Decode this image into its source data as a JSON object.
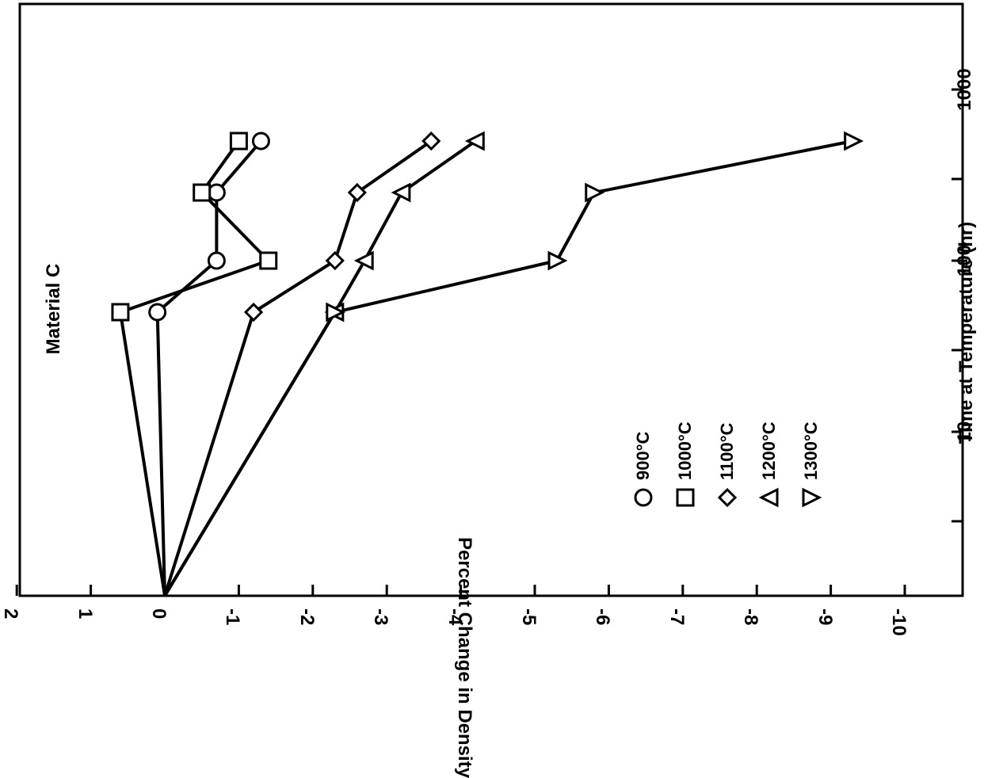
{
  "chart_data": {
    "type": "line",
    "orientation": "rotated-90",
    "x_scale": "log",
    "xlabel": "Time at Temperature (hr)",
    "ylabel": "Percent Change in Density",
    "annotation": "Material C",
    "xlim": [
      1,
      3000
    ],
    "ylim": [
      -10,
      2
    ],
    "x_ticks": [
      10,
      100,
      1000
    ],
    "x_tick_labels": [
      "10",
      "100",
      "1000"
    ],
    "y_ticks": [
      2,
      1,
      0,
      -1,
      -2,
      -3,
      -4,
      -5,
      -6,
      -7,
      -8,
      -9,
      -10
    ],
    "y_tick_labels": [
      "2",
      "1",
      "0",
      "-1",
      "-2",
      "-3",
      "-4",
      "-5",
      "-6",
      "-7",
      "-8",
      "-9",
      "-10"
    ],
    "grid": false,
    "legend_placement": "lower-left",
    "series": [
      {
        "name": "900°C",
        "marker": "circle",
        "x": [
          1,
          50,
          100,
          250,
          500
        ],
        "y": [
          0,
          0.1,
          -0.7,
          -0.7,
          -1.3
        ]
      },
      {
        "name": "1000°C",
        "marker": "square",
        "x": [
          1,
          50,
          100,
          250,
          500
        ],
        "y": [
          0,
          0.6,
          -1.4,
          -0.5,
          -1.0
        ]
      },
      {
        "name": "1100°C",
        "marker": "diamond",
        "x": [
          1,
          50,
          100,
          250,
          500
        ],
        "y": [
          0,
          -1.2,
          -2.3,
          -2.6,
          -3.6
        ]
      },
      {
        "name": "1200°C",
        "marker": "triangle-up",
        "x": [
          1,
          50,
          100,
          250,
          500
        ],
        "y": [
          0,
          -2.3,
          -2.7,
          -3.2,
          -4.2
        ]
      },
      {
        "name": "1300°C",
        "marker": "triangle-down",
        "x": [
          1,
          50,
          100,
          250,
          500
        ],
        "y": [
          0,
          -2.3,
          -5.3,
          -5.8,
          -9.3
        ]
      }
    ]
  }
}
